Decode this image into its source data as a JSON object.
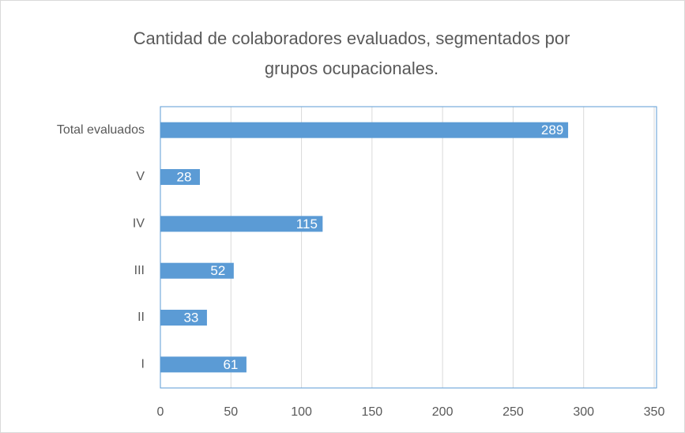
{
  "chart_data": {
    "type": "bar",
    "orientation": "horizontal",
    "title": [
      "Cantidad de colaboradores evaluados,  segmentados por",
      "grupos ocupacionales."
    ],
    "categories": [
      "Total evaluados",
      "V",
      "IV",
      "III",
      "II",
      "I"
    ],
    "values": [
      289,
      28,
      115,
      52,
      33,
      61
    ],
    "color": "#5b9bd5",
    "xlim": [
      0,
      350
    ],
    "xticks": [
      0,
      50,
      100,
      150,
      200,
      250,
      300,
      350
    ],
    "grid": true
  }
}
